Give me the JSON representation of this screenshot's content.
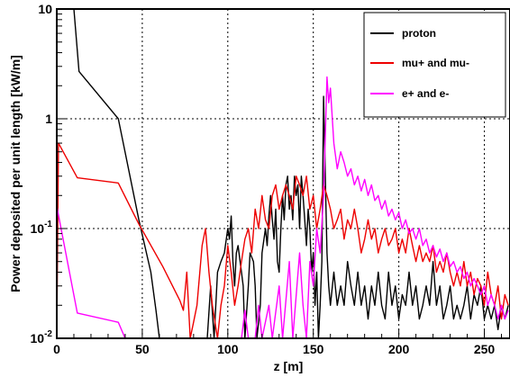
{
  "chart_data": {
    "type": "line",
    "xlabel": "z [m]",
    "ylabel": "Power deposited per unit length [kW/m]",
    "xlim": [
      0,
      265
    ],
    "ylim": [
      0.01,
      10
    ],
    "yscale": "log",
    "grid": true,
    "legend_position": "top-right",
    "x_ticks": [
      0,
      50,
      100,
      150,
      200,
      250
    ],
    "y_ticks": [
      {
        "value": 0.01,
        "mantissa": "10",
        "exp": "-2"
      },
      {
        "value": 0.1,
        "mantissa": "10",
        "exp": "-1"
      },
      {
        "value": 1,
        "mantissa": "1",
        "exp": ""
      },
      {
        "value": 10,
        "mantissa": "10",
        "exp": ""
      }
    ],
    "series": [
      {
        "name": "proton",
        "color": "#000000",
        "points": [
          [
            10,
            10
          ],
          [
            13,
            2.7
          ],
          [
            36,
            1.0
          ],
          [
            48,
            0.12
          ],
          [
            55,
            0.04
          ],
          [
            58,
            0.018
          ],
          [
            60,
            0.01
          ],
          [
            88,
            0.01
          ],
          [
            90,
            0.03
          ],
          [
            92,
            0.01
          ],
          [
            94,
            0.04
          ],
          [
            96,
            0.05
          ],
          [
            98,
            0.06
          ],
          [
            100,
            0.1
          ],
          [
            101,
            0.08
          ],
          [
            102,
            0.13
          ],
          [
            103,
            0.05
          ],
          [
            104,
            0.03
          ],
          [
            105,
            0.06
          ],
          [
            106,
            0.07
          ],
          [
            108,
            0.04
          ],
          [
            109,
            0.03
          ],
          [
            110,
            0.01
          ],
          [
            112,
            0.03
          ],
          [
            113,
            0.06
          ],
          [
            115,
            0.05
          ],
          [
            116,
            0.03
          ],
          [
            117,
            0.01
          ],
          [
            119,
            0.02
          ],
          [
            120,
            0.06
          ],
          [
            122,
            0.1
          ],
          [
            123,
            0.07
          ],
          [
            124,
            0.13
          ],
          [
            125,
            0.2
          ],
          [
            126,
            0.12
          ],
          [
            127,
            0.08
          ],
          [
            128,
            0.15
          ],
          [
            129,
            0.05
          ],
          [
            130,
            0.04
          ],
          [
            131,
            0.1
          ],
          [
            132,
            0.2
          ],
          [
            133,
            0.12
          ],
          [
            134,
            0.25
          ],
          [
            135,
            0.3
          ],
          [
            136,
            0.15
          ],
          [
            137,
            0.2
          ],
          [
            138,
            0.12
          ],
          [
            139,
            0.3
          ],
          [
            140,
            0.2
          ],
          [
            141,
            0.25
          ],
          [
            142,
            0.1
          ],
          [
            143,
            0.3
          ],
          [
            144,
            0.2
          ],
          [
            145,
            0.12
          ],
          [
            146,
            0.07
          ],
          [
            147,
            0.15
          ],
          [
            148,
            0.1
          ],
          [
            149,
            0.04
          ],
          [
            150,
            0.06
          ],
          [
            151,
            0.02
          ],
          [
            152,
            0.04
          ],
          [
            153,
            0.01
          ],
          [
            154,
            0.02
          ],
          [
            155,
            0.05
          ],
          [
            156,
            1.6
          ],
          [
            157,
            0.3
          ],
          [
            158,
            0.06
          ],
          [
            159,
            0.03
          ],
          [
            160,
            0.02
          ],
          [
            162,
            0.04
          ],
          [
            164,
            0.02
          ],
          [
            166,
            0.03
          ],
          [
            168,
            0.02
          ],
          [
            170,
            0.05
          ],
          [
            172,
            0.03
          ],
          [
            174,
            0.02
          ],
          [
            176,
            0.04
          ],
          [
            178,
            0.02
          ],
          [
            180,
            0.03
          ],
          [
            182,
            0.015
          ],
          [
            184,
            0.03
          ],
          [
            186,
            0.02
          ],
          [
            188,
            0.04
          ],
          [
            190,
            0.02
          ],
          [
            192,
            0.015
          ],
          [
            194,
            0.04
          ],
          [
            196,
            0.02
          ],
          [
            198,
            0.03
          ],
          [
            200,
            0.015
          ],
          [
            202,
            0.025
          ],
          [
            204,
            0.02
          ],
          [
            206,
            0.04
          ],
          [
            208,
            0.02
          ],
          [
            210,
            0.03
          ],
          [
            212,
            0.015
          ],
          [
            214,
            0.02
          ],
          [
            216,
            0.03
          ],
          [
            218,
            0.02
          ],
          [
            220,
            0.05
          ],
          [
            222,
            0.02
          ],
          [
            224,
            0.03
          ],
          [
            226,
            0.015
          ],
          [
            228,
            0.02
          ],
          [
            230,
            0.03
          ],
          [
            232,
            0.015
          ],
          [
            234,
            0.02
          ],
          [
            236,
            0.015
          ],
          [
            238,
            0.02
          ],
          [
            240,
            0.03
          ],
          [
            242,
            0.015
          ],
          [
            244,
            0.025
          ],
          [
            246,
            0.02
          ],
          [
            248,
            0.03
          ],
          [
            250,
            0.015
          ],
          [
            252,
            0.02
          ],
          [
            254,
            0.015
          ],
          [
            256,
            0.02
          ],
          [
            258,
            0.012
          ],
          [
            260,
            0.02
          ],
          [
            262,
            0.015
          ],
          [
            264,
            0.02
          ]
        ]
      },
      {
        "name": "mu+ and mu-",
        "color": "#ee0000",
        "points": [
          [
            0,
            0.01
          ],
          [
            1,
            0.6
          ],
          [
            12,
            0.29
          ],
          [
            36,
            0.26
          ],
          [
            48,
            0.11
          ],
          [
            62,
            0.045
          ],
          [
            72,
            0.022
          ],
          [
            74,
            0.018
          ],
          [
            76,
            0.04
          ],
          [
            78,
            0.01
          ],
          [
            80,
            0.014
          ],
          [
            82,
            0.02
          ],
          [
            85,
            0.07
          ],
          [
            87,
            0.1
          ],
          [
            89,
            0.04
          ],
          [
            91,
            0.02
          ],
          [
            94,
            0.01
          ],
          [
            96,
            0.02
          ],
          [
            98,
            0.03
          ],
          [
            100,
            0.07
          ],
          [
            102,
            0.04
          ],
          [
            104,
            0.02
          ],
          [
            106,
            0.03
          ],
          [
            108,
            0.05
          ],
          [
            110,
            0.08
          ],
          [
            112,
            0.1
          ],
          [
            114,
            0.06
          ],
          [
            116,
            0.15
          ],
          [
            118,
            0.1
          ],
          [
            120,
            0.2
          ],
          [
            122,
            0.12
          ],
          [
            124,
            0.1
          ],
          [
            126,
            0.2
          ],
          [
            128,
            0.25
          ],
          [
            130,
            0.15
          ],
          [
            132,
            0.2
          ],
          [
            134,
            0.25
          ],
          [
            136,
            0.2
          ],
          [
            138,
            0.15
          ],
          [
            140,
            0.3
          ],
          [
            142,
            0.25
          ],
          [
            144,
            0.2
          ],
          [
            146,
            0.3
          ],
          [
            148,
            0.15
          ],
          [
            150,
            0.2
          ],
          [
            152,
            0.1
          ],
          [
            154,
            0.15
          ],
          [
            156,
            0.25
          ],
          [
            158,
            0.2
          ],
          [
            160,
            0.15
          ],
          [
            162,
            0.1
          ],
          [
            164,
            0.12
          ],
          [
            166,
            0.15
          ],
          [
            168,
            0.08
          ],
          [
            170,
            0.12
          ],
          [
            172,
            0.1
          ],
          [
            174,
            0.15
          ],
          [
            176,
            0.1
          ],
          [
            178,
            0.06
          ],
          [
            180,
            0.08
          ],
          [
            182,
            0.12
          ],
          [
            184,
            0.08
          ],
          [
            186,
            0.1
          ],
          [
            188,
            0.06
          ],
          [
            190,
            0.08
          ],
          [
            192,
            0.1
          ],
          [
            194,
            0.07
          ],
          [
            196,
            0.08
          ],
          [
            198,
            0.1
          ],
          [
            200,
            0.06
          ],
          [
            202,
            0.08
          ],
          [
            204,
            0.06
          ],
          [
            206,
            0.1
          ],
          [
            208,
            0.07
          ],
          [
            210,
            0.05
          ],
          [
            212,
            0.07
          ],
          [
            214,
            0.05
          ],
          [
            216,
            0.06
          ],
          [
            218,
            0.05
          ],
          [
            220,
            0.07
          ],
          [
            222,
            0.04
          ],
          [
            224,
            0.05
          ],
          [
            226,
            0.04
          ],
          [
            228,
            0.06
          ],
          [
            230,
            0.04
          ],
          [
            232,
            0.03
          ],
          [
            234,
            0.04
          ],
          [
            236,
            0.03
          ],
          [
            238,
            0.05
          ],
          [
            240,
            0.03
          ],
          [
            242,
            0.04
          ],
          [
            244,
            0.025
          ],
          [
            246,
            0.035
          ],
          [
            248,
            0.03
          ],
          [
            250,
            0.02
          ],
          [
            252,
            0.04
          ],
          [
            254,
            0.025
          ],
          [
            256,
            0.02
          ],
          [
            258,
            0.03
          ],
          [
            260,
            0.015
          ],
          [
            262,
            0.025
          ],
          [
            264,
            0.02
          ]
        ]
      },
      {
        "name": "e+ and e-",
        "color": "#ff00ff",
        "points": [
          [
            0,
            0.16
          ],
          [
            12,
            0.017
          ],
          [
            36,
            0.014
          ],
          [
            40,
            0.01
          ],
          [
            108,
            0.01
          ],
          [
            110,
            0.018
          ],
          [
            112,
            0.01
          ],
          [
            116,
            0.01
          ],
          [
            118,
            0.02
          ],
          [
            120,
            0.01
          ],
          [
            124,
            0.02
          ],
          [
            126,
            0.01
          ],
          [
            130,
            0.03
          ],
          [
            132,
            0.01
          ],
          [
            136,
            0.05
          ],
          [
            138,
            0.01
          ],
          [
            142,
            0.06
          ],
          [
            144,
            0.02
          ],
          [
            146,
            0.01
          ],
          [
            148,
            0.05
          ],
          [
            150,
            0.03
          ],
          [
            152,
            0.1
          ],
          [
            154,
            0.06
          ],
          [
            156,
            0.2
          ],
          [
            158,
            2.4
          ],
          [
            159,
            1.4
          ],
          [
            160,
            1.9
          ],
          [
            162,
            0.6
          ],
          [
            164,
            0.35
          ],
          [
            166,
            0.5
          ],
          [
            168,
            0.4
          ],
          [
            170,
            0.3
          ],
          [
            172,
            0.35
          ],
          [
            174,
            0.25
          ],
          [
            176,
            0.3
          ],
          [
            178,
            0.22
          ],
          [
            180,
            0.28
          ],
          [
            182,
            0.2
          ],
          [
            184,
            0.25
          ],
          [
            186,
            0.18
          ],
          [
            188,
            0.2
          ],
          [
            190,
            0.15
          ],
          [
            192,
            0.18
          ],
          [
            194,
            0.13
          ],
          [
            196,
            0.15
          ],
          [
            198,
            0.12
          ],
          [
            200,
            0.14
          ],
          [
            202,
            0.1
          ],
          [
            204,
            0.12
          ],
          [
            206,
            0.09
          ],
          [
            208,
            0.1
          ],
          [
            210,
            0.08
          ],
          [
            212,
            0.1
          ],
          [
            214,
            0.07
          ],
          [
            216,
            0.08
          ],
          [
            218,
            0.06
          ],
          [
            220,
            0.07
          ],
          [
            222,
            0.055
          ],
          [
            224,
            0.065
          ],
          [
            226,
            0.05
          ],
          [
            228,
            0.06
          ],
          [
            230,
            0.045
          ],
          [
            232,
            0.05
          ],
          [
            234,
            0.04
          ],
          [
            236,
            0.045
          ],
          [
            238,
            0.035
          ],
          [
            240,
            0.04
          ],
          [
            242,
            0.03
          ],
          [
            244,
            0.035
          ],
          [
            246,
            0.03
          ],
          [
            248,
            0.025
          ],
          [
            250,
            0.03
          ],
          [
            252,
            0.02
          ],
          [
            254,
            0.025
          ],
          [
            256,
            0.02
          ],
          [
            258,
            0.015
          ],
          [
            260,
            0.02
          ],
          [
            262,
            0.015
          ],
          [
            264,
            0.018
          ]
        ]
      }
    ]
  }
}
